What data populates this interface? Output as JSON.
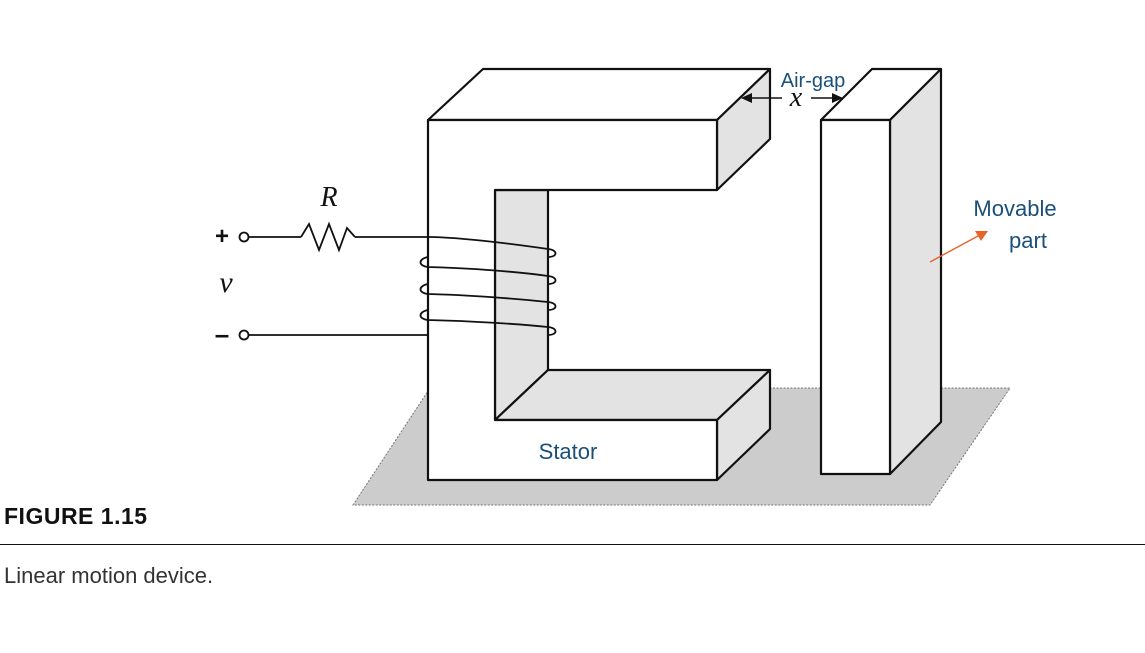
{
  "diagram": {
    "labels": {
      "air_gap": "Air-gap",
      "gap_variable": "x",
      "resistor": "R",
      "voltage": "v",
      "plus": "+",
      "minus": "–",
      "movable_line1": "Movable",
      "movable_line2": "part",
      "stator": "Stator"
    },
    "colors": {
      "label_blue": "#1a4f7a",
      "pointer_orange": "#e8622a",
      "face_gray": "#e3e3e3",
      "base_gray": "#cccccc",
      "outline": "#111111"
    }
  },
  "figure": {
    "number": "FIGURE 1.15",
    "caption": "Linear motion device."
  }
}
